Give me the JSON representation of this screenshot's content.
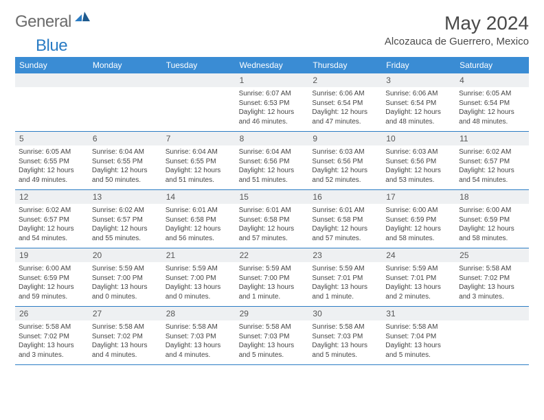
{
  "brand": {
    "part1": "General",
    "part2": "Blue"
  },
  "title": "May 2024",
  "location": "Alcozauca de Guerrero, Mexico",
  "colors": {
    "header_bg": "#3a8cd4",
    "header_text": "#ffffff",
    "daynum_bg": "#eef0f2",
    "border": "#2a7cc4",
    "brand_gray": "#6b6b6b",
    "brand_blue": "#2a7cc4"
  },
  "day_names": [
    "Sunday",
    "Monday",
    "Tuesday",
    "Wednesday",
    "Thursday",
    "Friday",
    "Saturday"
  ],
  "weeks": [
    [
      null,
      null,
      null,
      {
        "n": "1",
        "sr": "6:07 AM",
        "ss": "6:53 PM",
        "dl": "12 hours and 46 minutes."
      },
      {
        "n": "2",
        "sr": "6:06 AM",
        "ss": "6:54 PM",
        "dl": "12 hours and 47 minutes."
      },
      {
        "n": "3",
        "sr": "6:06 AM",
        "ss": "6:54 PM",
        "dl": "12 hours and 48 minutes."
      },
      {
        "n": "4",
        "sr": "6:05 AM",
        "ss": "6:54 PM",
        "dl": "12 hours and 48 minutes."
      }
    ],
    [
      {
        "n": "5",
        "sr": "6:05 AM",
        "ss": "6:55 PM",
        "dl": "12 hours and 49 minutes."
      },
      {
        "n": "6",
        "sr": "6:04 AM",
        "ss": "6:55 PM",
        "dl": "12 hours and 50 minutes."
      },
      {
        "n": "7",
        "sr": "6:04 AM",
        "ss": "6:55 PM",
        "dl": "12 hours and 51 minutes."
      },
      {
        "n": "8",
        "sr": "6:04 AM",
        "ss": "6:56 PM",
        "dl": "12 hours and 51 minutes."
      },
      {
        "n": "9",
        "sr": "6:03 AM",
        "ss": "6:56 PM",
        "dl": "12 hours and 52 minutes."
      },
      {
        "n": "10",
        "sr": "6:03 AM",
        "ss": "6:56 PM",
        "dl": "12 hours and 53 minutes."
      },
      {
        "n": "11",
        "sr": "6:02 AM",
        "ss": "6:57 PM",
        "dl": "12 hours and 54 minutes."
      }
    ],
    [
      {
        "n": "12",
        "sr": "6:02 AM",
        "ss": "6:57 PM",
        "dl": "12 hours and 54 minutes."
      },
      {
        "n": "13",
        "sr": "6:02 AM",
        "ss": "6:57 PM",
        "dl": "12 hours and 55 minutes."
      },
      {
        "n": "14",
        "sr": "6:01 AM",
        "ss": "6:58 PM",
        "dl": "12 hours and 56 minutes."
      },
      {
        "n": "15",
        "sr": "6:01 AM",
        "ss": "6:58 PM",
        "dl": "12 hours and 57 minutes."
      },
      {
        "n": "16",
        "sr": "6:01 AM",
        "ss": "6:58 PM",
        "dl": "12 hours and 57 minutes."
      },
      {
        "n": "17",
        "sr": "6:00 AM",
        "ss": "6:59 PM",
        "dl": "12 hours and 58 minutes."
      },
      {
        "n": "18",
        "sr": "6:00 AM",
        "ss": "6:59 PM",
        "dl": "12 hours and 58 minutes."
      }
    ],
    [
      {
        "n": "19",
        "sr": "6:00 AM",
        "ss": "6:59 PM",
        "dl": "12 hours and 59 minutes."
      },
      {
        "n": "20",
        "sr": "5:59 AM",
        "ss": "7:00 PM",
        "dl": "13 hours and 0 minutes."
      },
      {
        "n": "21",
        "sr": "5:59 AM",
        "ss": "7:00 PM",
        "dl": "13 hours and 0 minutes."
      },
      {
        "n": "22",
        "sr": "5:59 AM",
        "ss": "7:00 PM",
        "dl": "13 hours and 1 minute."
      },
      {
        "n": "23",
        "sr": "5:59 AM",
        "ss": "7:01 PM",
        "dl": "13 hours and 1 minute."
      },
      {
        "n": "24",
        "sr": "5:59 AM",
        "ss": "7:01 PM",
        "dl": "13 hours and 2 minutes."
      },
      {
        "n": "25",
        "sr": "5:58 AM",
        "ss": "7:02 PM",
        "dl": "13 hours and 3 minutes."
      }
    ],
    [
      {
        "n": "26",
        "sr": "5:58 AM",
        "ss": "7:02 PM",
        "dl": "13 hours and 3 minutes."
      },
      {
        "n": "27",
        "sr": "5:58 AM",
        "ss": "7:02 PM",
        "dl": "13 hours and 4 minutes."
      },
      {
        "n": "28",
        "sr": "5:58 AM",
        "ss": "7:03 PM",
        "dl": "13 hours and 4 minutes."
      },
      {
        "n": "29",
        "sr": "5:58 AM",
        "ss": "7:03 PM",
        "dl": "13 hours and 5 minutes."
      },
      {
        "n": "30",
        "sr": "5:58 AM",
        "ss": "7:03 PM",
        "dl": "13 hours and 5 minutes."
      },
      {
        "n": "31",
        "sr": "5:58 AM",
        "ss": "7:04 PM",
        "dl": "13 hours and 5 minutes."
      },
      null
    ]
  ]
}
